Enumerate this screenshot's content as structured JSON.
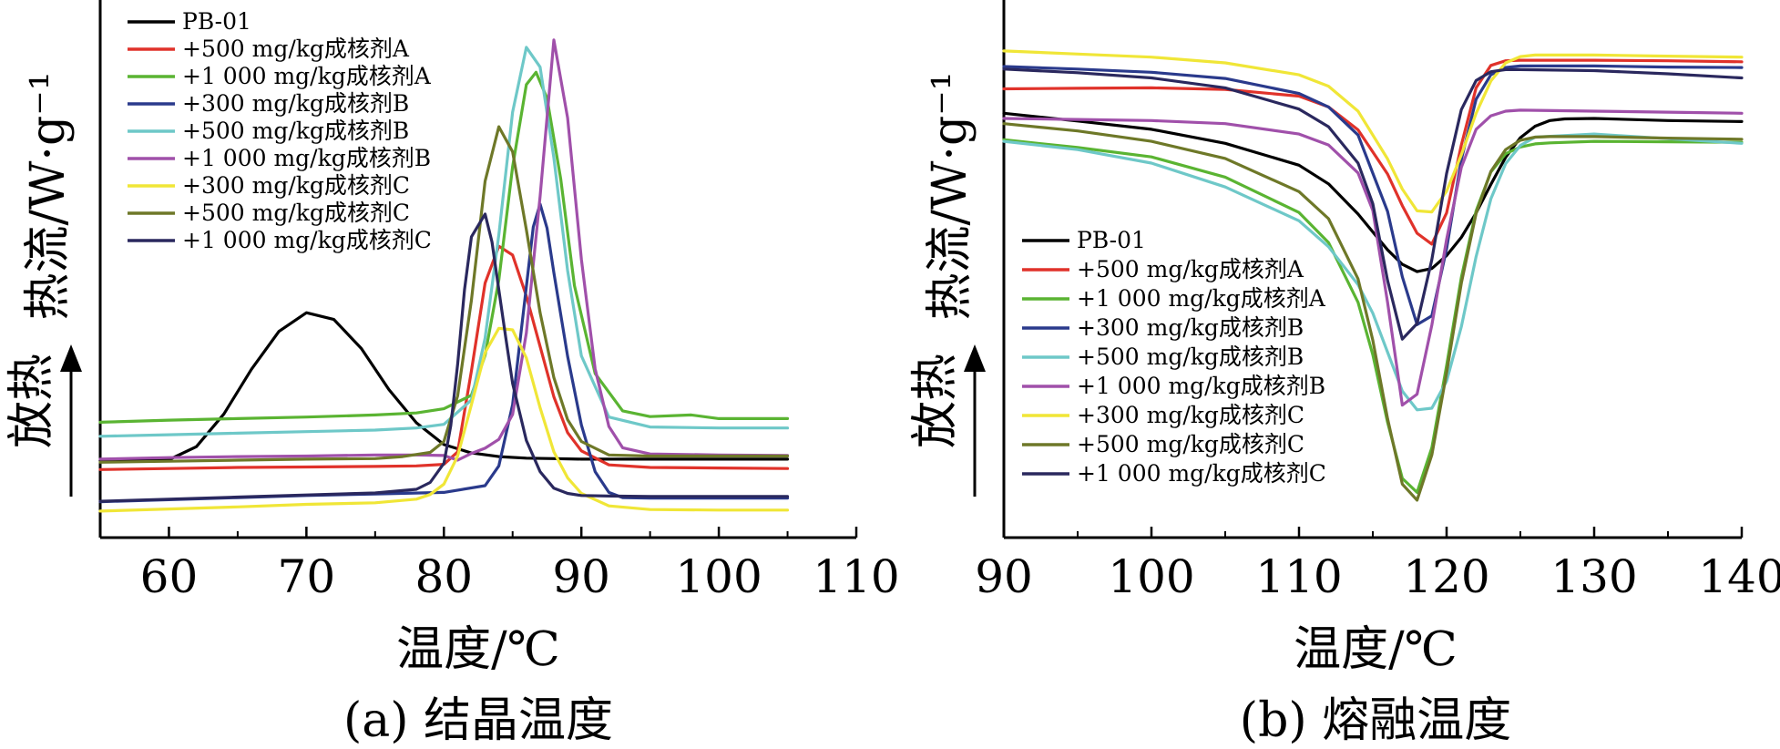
{
  "chart_data": [
    {
      "type": "line",
      "caption": "(a) 结晶温度",
      "xlabel": "温度/℃",
      "ylabel": "热流/W·g⁻¹",
      "arrow_label": "放热",
      "xlim": [
        55,
        110
      ],
      "x_ticks": [
        60,
        70,
        80,
        90,
        100,
        110
      ],
      "x_range_data": [
        55,
        105
      ],
      "y_units": "relative heat flow (0 = bottom, 100 = top of plot)",
      "series": [
        {
          "name": "PB-01",
          "color": "#000000",
          "x": [
            55,
            60,
            62,
            64,
            66,
            68,
            70,
            72,
            74,
            76,
            78,
            80,
            82,
            84,
            86,
            88,
            90,
            95,
            100,
            105
          ],
          "y": [
            12.7,
            12.9,
            15.4,
            21.7,
            30.3,
            37.6,
            41.2,
            39.9,
            34.3,
            26.4,
            20.0,
            15.8,
            14.2,
            13.5,
            13.2,
            13.1,
            13.0,
            13.0,
            13.0,
            13.0
          ]
        },
        {
          "name": "+500 mg/kg成核剂A",
          "color": "#e0322a",
          "x": [
            55,
            60,
            65,
            70,
            75,
            78,
            80,
            81,
            82,
            83,
            84,
            85,
            86,
            87,
            88,
            89,
            90,
            92,
            95,
            100,
            105
          ],
          "y": [
            11.0,
            11.2,
            11.4,
            11.5,
            11.6,
            11.7,
            12.0,
            14.4,
            30.0,
            46.9,
            54.0,
            52.3,
            44.4,
            34.7,
            25.0,
            18.1,
            14.6,
            11.9,
            11.4,
            11.3,
            11.2
          ]
        },
        {
          "name": "+1 000 mg/kg成核剂A",
          "color": "#5ab432",
          "x": [
            55,
            60,
            65,
            70,
            75,
            78,
            80,
            82,
            83,
            84,
            85,
            86,
            86.7,
            87.5,
            88.5,
            89.5,
            91,
            93,
            95,
            98,
            100,
            105
          ],
          "y": [
            20.1,
            20.5,
            20.8,
            21.1,
            21.5,
            21.9,
            22.7,
            25.3,
            33.0,
            47.5,
            69.3,
            85.1,
            87.5,
            82.5,
            67.0,
            46.4,
            29.5,
            22.3,
            21.2,
            21.5,
            20.8,
            20.8
          ]
        },
        {
          "name": "+300 mg/kg成核剂B",
          "color": "#2a3a8c",
          "x": [
            55,
            60,
            65,
            70,
            75,
            80,
            83,
            84,
            85,
            86,
            86.5,
            87,
            87.5,
            88,
            89,
            90,
            91,
            92,
            93,
            95,
            100,
            105
          ],
          "y": [
            4.8,
            5.2,
            5.6,
            6.0,
            6.3,
            6.6,
            7.9,
            11.7,
            23.5,
            46.2,
            57.7,
            62.1,
            57.5,
            48.9,
            32.8,
            19.6,
            10.6,
            6.6,
            5.6,
            5.5,
            5.5,
            5.5
          ]
        },
        {
          "name": "+500 mg/kg成核剂B",
          "color": "#6ec8c8",
          "x": [
            55,
            60,
            65,
            70,
            75,
            78,
            80,
            82,
            83,
            84,
            85,
            86,
            87,
            88,
            89,
            90,
            92,
            95,
            100,
            105
          ],
          "y": [
            17.4,
            17.7,
            18.0,
            18.3,
            18.6,
            19.0,
            19.7,
            24.4,
            36.3,
            56.2,
            79.8,
            92.3,
            88.5,
            71.0,
            49.3,
            32.9,
            21.1,
            19.2,
            19.0,
            19.0
          ]
        },
        {
          "name": "+1 000 mg/kg成核剂B",
          "color": "#a050aa",
          "x": [
            55,
            60,
            65,
            70,
            75,
            78,
            80,
            81,
            82,
            83,
            84,
            85,
            86,
            87,
            88,
            89,
            90,
            91,
            92,
            93,
            95,
            100,
            105
          ],
          "y": [
            13.0,
            13.3,
            13.5,
            13.6,
            13.8,
            13.8,
            13.7,
            12.8,
            14.1,
            15.1,
            16.8,
            21.6,
            37.3,
            63.6,
            93.7,
            78.7,
            51.5,
            30.4,
            19.3,
            15.2,
            14.0,
            13.8,
            13.7
          ]
        },
        {
          "name": "+300 mg/kg成核剂C",
          "color": "#f0e637",
          "x": [
            55,
            60,
            65,
            70,
            75,
            78,
            79,
            80,
            81,
            82,
            83,
            84,
            85,
            86,
            87,
            88,
            89,
            90,
            92,
            95,
            100,
            105
          ],
          "y": [
            3.0,
            3.4,
            3.8,
            4.3,
            4.6,
            5.3,
            6.2,
            8.2,
            13.6,
            23.5,
            33.5,
            38.2,
            37.9,
            32.5,
            22.9,
            14.4,
            9.4,
            6.4,
            4.0,
            3.3,
            3.2,
            3.2
          ]
        },
        {
          "name": "+500 mg/kg成核剂C",
          "color": "#6e7828",
          "x": [
            55,
            60,
            65,
            70,
            75,
            77,
            79,
            80,
            81,
            82,
            83,
            84,
            85,
            86,
            87,
            88,
            89,
            90,
            92,
            95,
            100,
            105
          ],
          "y": [
            12.4,
            12.6,
            12.8,
            13.0,
            13.1,
            13.5,
            14.3,
            16.4,
            25.2,
            43.6,
            66.5,
            77.0,
            72.2,
            57.2,
            41.2,
            28.7,
            20.6,
            16.4,
            13.8,
            13.6,
            13.6,
            13.6
          ]
        },
        {
          "name": "+1 000 mg/kg成核剂C",
          "color": "#2a285e",
          "x": [
            55,
            60,
            65,
            70,
            75,
            78,
            79,
            80,
            80.5,
            81,
            81.5,
            82,
            83,
            83.5,
            84,
            84.5,
            85,
            86,
            87,
            88,
            89,
            90,
            92,
            95,
            100,
            105
          ],
          "y": [
            4.9,
            5.3,
            5.7,
            6.1,
            6.5,
            7.2,
            8.5,
            12.2,
            19.4,
            31.3,
            45.6,
            55.8,
            60.2,
            54.8,
            45.6,
            36.4,
            27.6,
            16.6,
            10.6,
            7.4,
            6.4,
            6.0,
            5.9,
            5.8,
            5.8,
            5.8
          ]
        }
      ]
    },
    {
      "type": "line",
      "caption": "(b) 熔融温度",
      "xlabel": "温度/℃",
      "ylabel": "热流/W·g⁻¹",
      "arrow_label": "放热",
      "xlim": [
        90,
        140
      ],
      "x_ticks": [
        90,
        100,
        110,
        120,
        130,
        140
      ],
      "y_units": "relative heat flow (0 = bottom, 100 = top of plot)",
      "series": [
        {
          "name": "PB-01",
          "color": "#000000",
          "x": [
            90,
            95,
            100,
            105,
            110,
            112,
            114,
            116,
            117,
            118,
            119,
            120,
            121,
            122,
            123,
            124,
            125,
            126,
            127,
            128,
            130,
            135,
            140
          ],
          "y": [
            79.6,
            78.1,
            76.5,
            73.8,
            69.6,
            66.0,
            60.2,
            53.3,
            50.5,
            49.1,
            49.7,
            52.2,
            55.7,
            60.4,
            65.9,
            71.1,
            74.9,
            77.1,
            78.2,
            78.5,
            78.6,
            78.2,
            78.0
          ]
        },
        {
          "name": "+500 mg/kg成核剂A",
          "color": "#e0322a",
          "x": [
            90,
            95,
            100,
            105,
            110,
            112,
            114,
            116,
            117,
            118,
            119,
            120,
            121,
            122,
            123,
            124,
            125,
            130,
            135,
            140
          ],
          "y": [
            84.3,
            84.4,
            84.5,
            84.2,
            82.9,
            80.8,
            76.4,
            67.9,
            61.8,
            56.5,
            54.4,
            60.4,
            73.5,
            84.5,
            88.8,
            89.7,
            89.8,
            89.8,
            89.7,
            89.5
          ]
        },
        {
          "name": "+1 000 mg/kg成核剂A",
          "color": "#5ab432",
          "x": [
            90,
            95,
            100,
            105,
            110,
            112,
            114,
            115,
            116,
            117,
            118,
            119,
            120,
            121,
            122,
            123,
            124,
            125,
            126,
            127,
            130,
            135,
            140
          ],
          "y": [
            74.5,
            73.0,
            71.2,
            67.3,
            60.5,
            54.7,
            43.2,
            33.1,
            20.1,
            9.3,
            6.6,
            15.2,
            31.0,
            48.0,
            60.8,
            68.3,
            71.8,
            73.1,
            73.7,
            73.9,
            74.2,
            74.1,
            74.0
          ]
        },
        {
          "name": "+300 mg/kg成核剂B",
          "color": "#2a3a8c",
          "x": [
            90,
            95,
            100,
            105,
            110,
            112,
            114,
            116,
            117,
            118,
            119,
            120,
            121,
            122,
            123,
            124,
            125,
            130,
            135,
            140
          ],
          "y": [
            88.6,
            88.1,
            87.5,
            86.3,
            83.4,
            80.8,
            75.4,
            60.7,
            48.1,
            38.9,
            40.6,
            53.5,
            70.7,
            82.3,
            87.0,
            88.4,
            88.7,
            88.7,
            88.5,
            88.4
          ]
        },
        {
          "name": "+500 mg/kg成核剂B",
          "color": "#6ec8c8",
          "x": [
            90,
            95,
            100,
            105,
            110,
            112,
            114,
            115,
            116,
            117,
            118,
            119,
            120,
            121,
            122,
            123,
            124,
            125,
            126,
            130,
            135,
            140
          ],
          "y": [
            74.2,
            72.6,
            70.0,
            65.4,
            58.9,
            53.9,
            46.6,
            41.1,
            33.6,
            26.1,
            22.5,
            22.8,
            28.0,
            38.5,
            52.0,
            63.1,
            69.9,
            73.4,
            75.0,
            75.6,
            74.7,
            73.8
          ]
        },
        {
          "name": "+1 000 mg/kg成核剂B",
          "color": "#a050aa",
          "x": [
            90,
            95,
            100,
            105,
            110,
            112,
            114,
            115,
            116,
            117,
            118,
            119,
            120,
            121,
            122,
            123,
            124,
            125,
            130,
            135,
            140
          ],
          "y": [
            78.6,
            78.4,
            78.2,
            77.6,
            75.6,
            73.5,
            68.1,
            60.9,
            43.2,
            23.4,
            25.5,
            38.8,
            55.3,
            69.2,
            76.5,
            79.1,
            80.0,
            80.2,
            80.0,
            79.8,
            79.6
          ]
        },
        {
          "name": "+300 mg/kg成核剂C",
          "color": "#f0e637",
          "x": [
            90,
            95,
            100,
            105,
            110,
            112,
            114,
            116,
            117,
            118,
            119,
            120,
            121,
            122,
            123,
            124,
            125,
            126,
            130,
            135,
            140
          ],
          "y": [
            91.6,
            91.0,
            90.4,
            89.3,
            87.0,
            84.8,
            80.0,
            70.8,
            65.0,
            60.8,
            60.6,
            64.6,
            71.6,
            79.6,
            85.8,
            89.3,
            90.5,
            90.8,
            90.8,
            90.6,
            90.4
          ]
        },
        {
          "name": "+500 mg/kg成核剂C",
          "color": "#6e7828",
          "x": [
            90,
            95,
            100,
            105,
            110,
            112,
            114,
            115,
            116,
            117,
            118,
            119,
            120,
            121,
            122,
            123,
            124,
            125,
            126,
            127,
            130,
            135,
            140
          ],
          "y": [
            77.6,
            76.2,
            74.2,
            70.9,
            64.5,
            59.3,
            47.7,
            35.9,
            20.8,
            8.2,
            5.1,
            13.8,
            29.6,
            46.9,
            60.3,
            68.4,
            72.6,
            74.4,
            75.0,
            75.1,
            75.1,
            74.8,
            74.6
          ]
        },
        {
          "name": "+1 000 mg/kg成核剂C",
          "color": "#2a285e",
          "x": [
            90,
            95,
            100,
            105,
            110,
            112,
            114,
            115,
            116,
            117,
            118,
            119,
            120,
            121,
            122,
            123,
            124,
            125,
            130,
            135,
            140
          ],
          "y": [
            88.1,
            87.4,
            86.4,
            84.5,
            80.4,
            77.0,
            70.0,
            62.2,
            47.4,
            36.1,
            39.1,
            51.4,
            68.0,
            80.3,
            85.9,
            87.6,
            88.0,
            88.0,
            87.8,
            87.2,
            86.4
          ]
        }
      ]
    }
  ]
}
